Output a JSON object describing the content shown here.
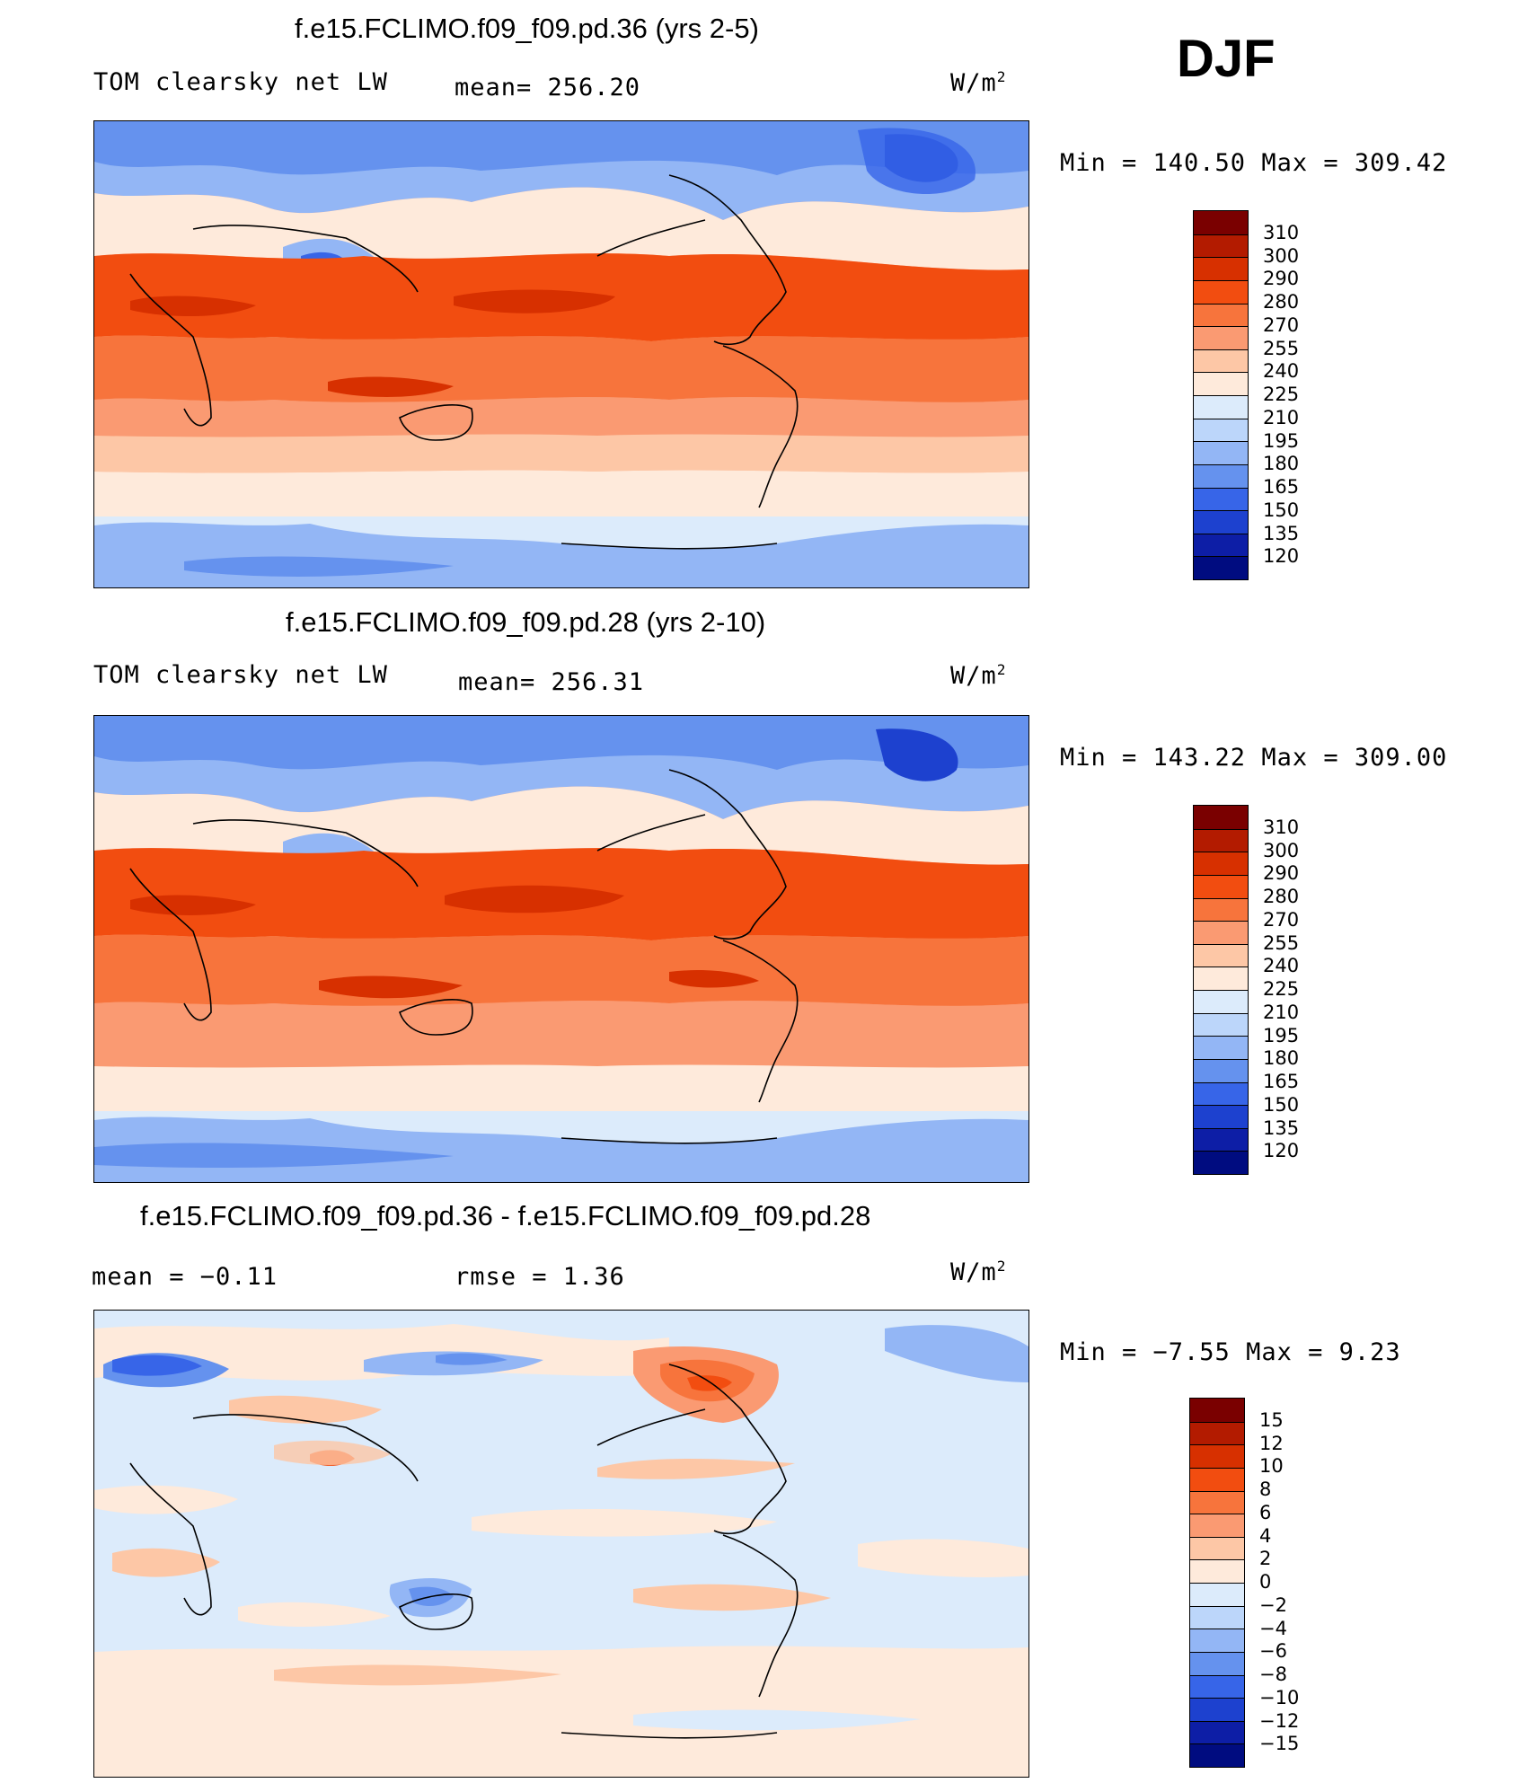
{
  "season": "DJF",
  "panels": [
    {
      "title": "f.e15.FCLIMO.f09_f09.pd.36 (yrs 2-5)",
      "left_text": "TOM clearsky net LW",
      "mid_text": "mean= 256.20",
      "units": "W/m",
      "units_sup": "2",
      "minmax": "Min  =  140.50  Max  =  309.42",
      "colorbar": [
        "310",
        "300",
        "290",
        "280",
        "270",
        "255",
        "240",
        "225",
        "210",
        "195",
        "180",
        "165",
        "150",
        "135",
        "120"
      ],
      "colors": [
        "#7a0000",
        "#b31b00",
        "#d73000",
        "#f24d10",
        "#f7743c",
        "#fa9a72",
        "#fdc7a6",
        "#feeadb",
        "#dcebfb",
        "#bcd6fa",
        "#93b6f5",
        "#6592ee",
        "#3765e8",
        "#1d41cf",
        "#0d1ea6",
        "#000c80"
      ]
    },
    {
      "title": "f.e15.FCLIMO.f09_f09.pd.28 (yrs 2-10)",
      "left_text": "TOM clearsky net LW",
      "mid_text": "mean= 256.31",
      "units": "W/m",
      "units_sup": "2",
      "minmax": "Min  =  143.22  Max  =  309.00",
      "colorbar": [
        "310",
        "300",
        "290",
        "280",
        "270",
        "255",
        "240",
        "225",
        "210",
        "195",
        "180",
        "165",
        "150",
        "135",
        "120"
      ],
      "colors": [
        "#7a0000",
        "#b31b00",
        "#d73000",
        "#f24d10",
        "#f7743c",
        "#fa9a72",
        "#fdc7a6",
        "#feeadb",
        "#dcebfb",
        "#bcd6fa",
        "#93b6f5",
        "#6592ee",
        "#3765e8",
        "#1d41cf",
        "#0d1ea6",
        "#000c80"
      ]
    },
    {
      "title": "f.e15.FCLIMO.f09_f09.pd.36 - f.e15.FCLIMO.f09_f09.pd.28",
      "left_text": "mean =    −0.11",
      "mid_text": "rmse =     1.36",
      "units": "W/m",
      "units_sup": "2",
      "minmax": "Min  =    −7.55  Max  =     9.23",
      "colorbar": [
        "15",
        "12",
        "10",
        "8",
        "6",
        "4",
        "2",
        "0",
        "−2",
        "−4",
        "−6",
        "−8",
        "−10",
        "−12",
        "−15"
      ],
      "colors": [
        "#7a0000",
        "#b31b00",
        "#d73000",
        "#f24d10",
        "#f7743c",
        "#fa9a72",
        "#fdc7a6",
        "#feeadb",
        "#dcebfb",
        "#bcd6fa",
        "#93b6f5",
        "#6592ee",
        "#3765e8",
        "#1d41cf",
        "#0d1ea6",
        "#000c80"
      ]
    }
  ]
}
